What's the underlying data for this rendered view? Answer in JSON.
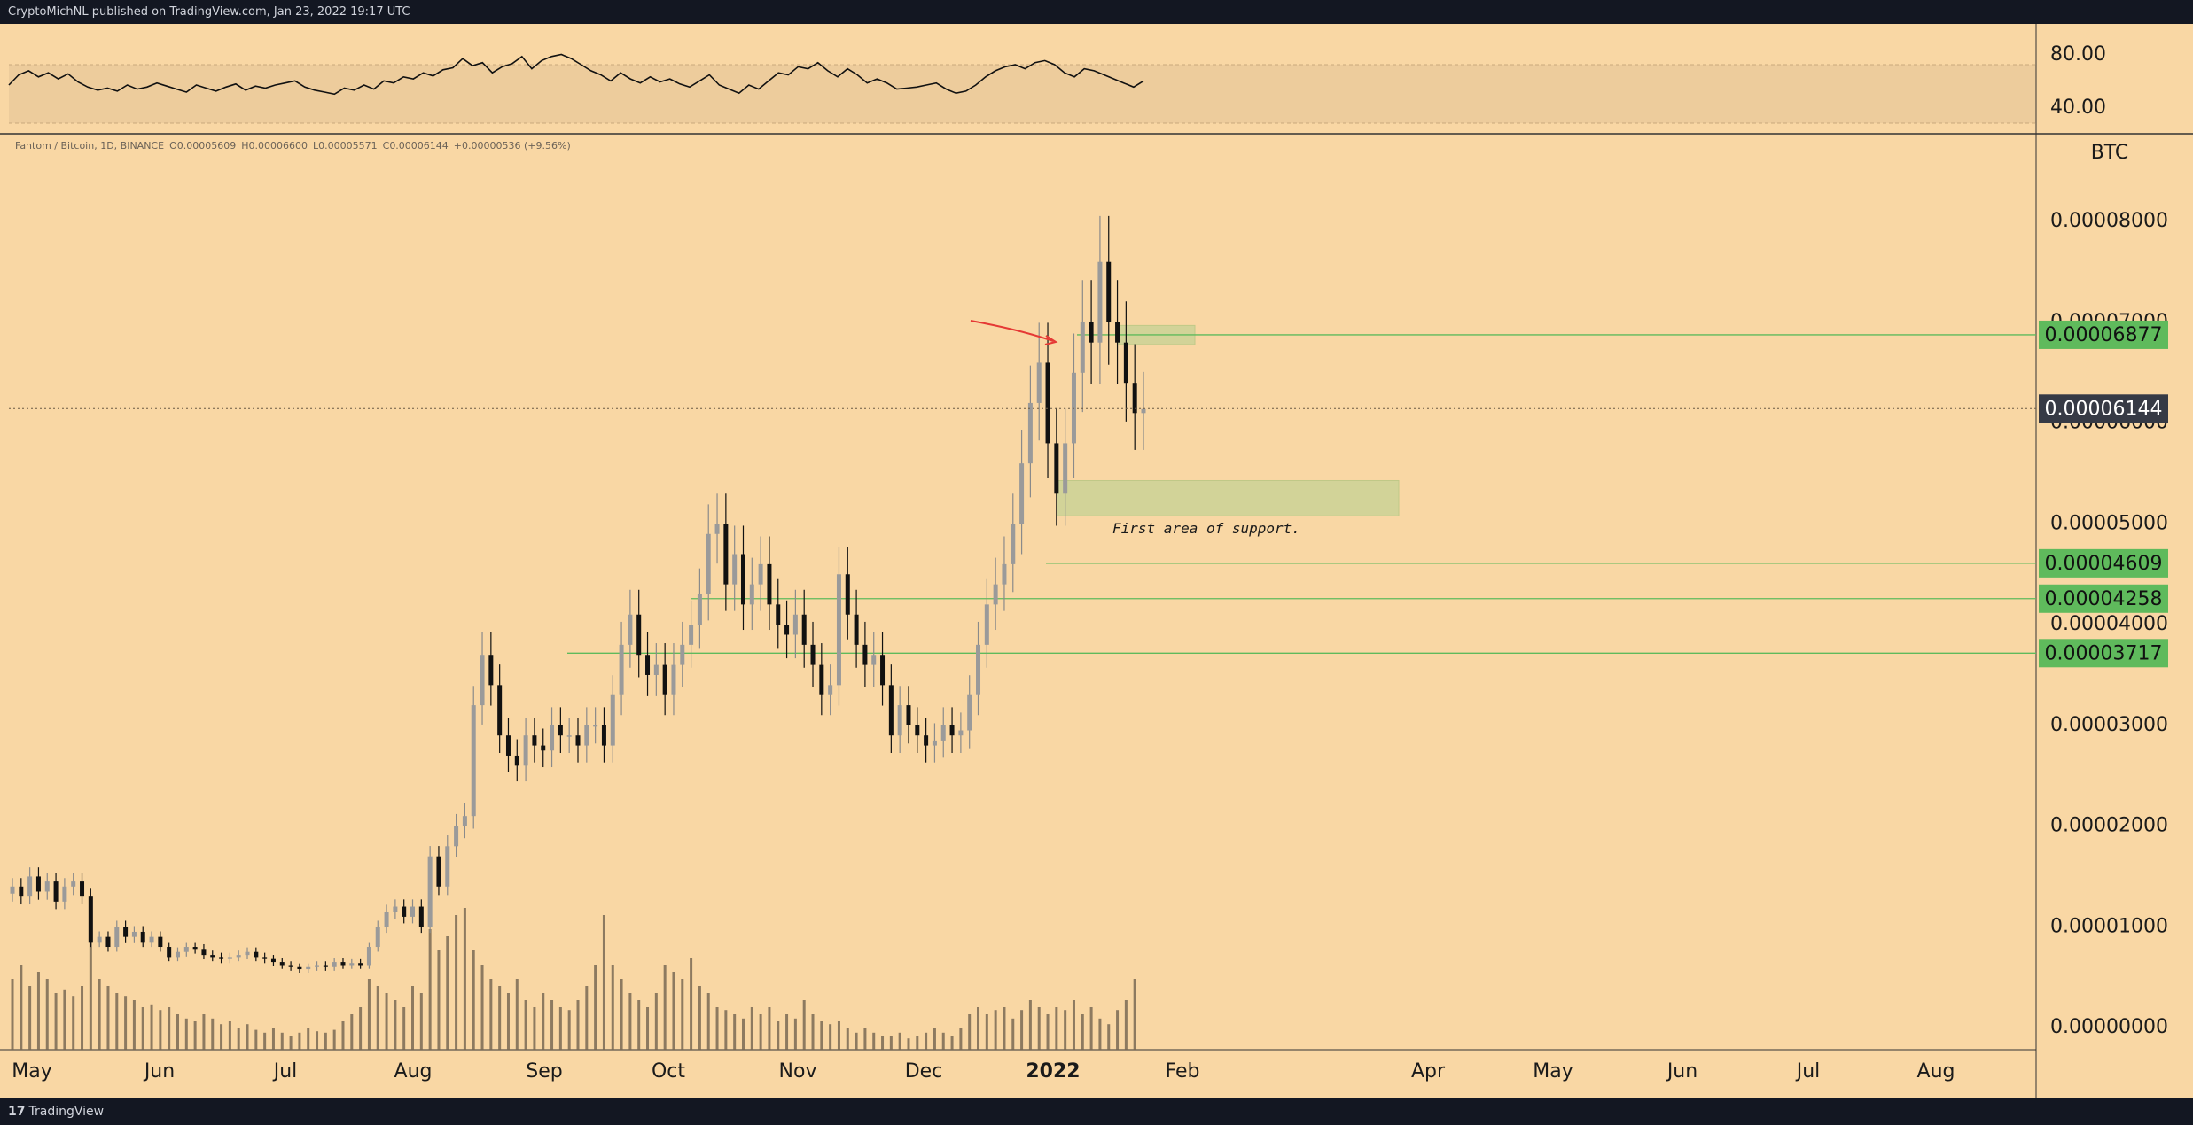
{
  "header": {
    "published_text": "CryptoMichNL published on TradingView.com, Jan 23, 2022 19:17 UTC"
  },
  "footer": {
    "logo_text": "17",
    "brand_text": "TradingView"
  },
  "colors": {
    "background": "#f9d7a4",
    "frame": "#131722",
    "candle": "#000000",
    "volume": "#7a6a55",
    "level_green": "#5fba5c",
    "price_box": "#363a45",
    "arrow_red": "#e53935"
  },
  "chart_data": [
    {
      "type": "line",
      "panel": "oscillator",
      "y_ticks": [
        "80.00",
        "40.00"
      ],
      "band_lines": [
        "upper",
        "lower"
      ],
      "y": [
        60,
        70,
        74,
        68,
        72,
        66,
        71,
        63,
        58,
        55,
        57,
        54,
        60,
        56,
        58,
        62,
        59,
        56,
        53,
        60,
        57,
        54,
        58,
        61,
        55,
        59,
        57,
        60,
        62,
        64,
        58,
        55,
        53,
        51,
        57,
        55,
        60,
        56,
        64,
        62,
        68,
        66,
        72,
        69,
        75,
        77,
        86,
        79,
        82,
        72,
        78,
        81,
        88,
        76,
        84,
        88,
        90,
        86,
        80,
        74,
        70,
        64,
        72,
        66,
        62,
        68,
        63,
        66,
        61,
        58,
        64,
        70,
        60,
        56,
        52,
        60,
        56,
        64,
        72,
        70,
        78,
        76,
        82,
        74,
        68,
        76,
        70,
        62,
        66,
        62,
        56,
        57,
        58,
        60,
        62,
        56,
        52,
        54,
        60,
        68,
        74,
        78,
        80,
        76,
        82,
        84,
        80,
        72,
        68,
        76,
        74,
        70,
        66,
        62,
        58,
        64
      ]
    },
    {
      "type": "candlestick",
      "panel": "price",
      "legend": "Fantom / Bitcoin, 1D, BINANCE",
      "ohlc_readout": {
        "o_label": "O",
        "open": "0.00005609",
        "h_label": "H",
        "high": "0.00006600",
        "l_label": "L",
        "low": "0.00005571",
        "c_label": "C",
        "close": "0.00006144",
        "change": "+0.00000536 (+9.56%)"
      },
      "currency": "BTC",
      "x_labels": [
        "May",
        "Jun",
        "Jul",
        "Aug",
        "Sep",
        "Oct",
        "Nov",
        "Dec",
        "2022",
        "Feb",
        "Apr",
        "May",
        "Jun",
        "Jul",
        "Aug"
      ],
      "y_ticks": [
        "0.00000000",
        "0.00001000",
        "0.00002000",
        "0.00003000",
        "0.00004000",
        "0.00005000",
        "0.00006000",
        "0.00007000",
        "0.00008000"
      ],
      "ylim": [
        0,
        8.6e-05
      ],
      "current_price": "0.00006144",
      "levels": [
        {
          "value": 6.877e-05,
          "label": "0.00006877"
        },
        {
          "value": 4.609e-05,
          "label": "0.00004609"
        },
        {
          "value": 4.258e-05,
          "label": "0.00004258"
        },
        {
          "value": 3.717e-05,
          "label": "0.00003717"
        }
      ],
      "annotation": "First area of support.",
      "support_zone": [
        5.08e-05,
        5.43e-05
      ],
      "resistance_zone": [
        6.78e-05,
        6.97e-05
      ],
      "close_series": [
        1.4e-05,
        1.3e-05,
        1.5e-05,
        1.35e-05,
        1.45e-05,
        1.25e-05,
        1.4e-05,
        1.45e-05,
        1.3e-05,
        8.5e-06,
        9e-06,
        8e-06,
        1e-05,
        9e-06,
        9.5e-06,
        8.5e-06,
        9e-06,
        8e-06,
        7e-06,
        7.5e-06,
        8e-06,
        7.8e-06,
        7.2e-06,
        7e-06,
        6.8e-06,
        7e-06,
        7.2e-06,
        7.5e-06,
        7e-06,
        6.8e-06,
        6.5e-06,
        6.2e-06,
        6e-06,
        5.8e-06,
        6e-06,
        6.2e-06,
        6e-06,
        6.5e-06,
        6.2e-06,
        6.4e-06,
        6.2e-06,
        8e-06,
        1e-05,
        1.15e-05,
        1.2e-05,
        1.1e-05,
        1.2e-05,
        1e-05,
        1.7e-05,
        1.4e-05,
        1.8e-05,
        2e-05,
        2.1e-05,
        3.2e-05,
        3.7e-05,
        3.4e-05,
        2.9e-05,
        2.7e-05,
        2.6e-05,
        2.9e-05,
        2.8e-05,
        2.75e-05,
        3e-05,
        2.9e-05,
        2.9e-05,
        2.8e-05,
        3e-05,
        3e-05,
        2.8e-05,
        3.3e-05,
        3.8e-05,
        4.1e-05,
        3.7e-05,
        3.5e-05,
        3.6e-05,
        3.3e-05,
        3.6e-05,
        3.8e-05,
        4e-05,
        4.3e-05,
        4.9e-05,
        5e-05,
        4.4e-05,
        4.7e-05,
        4.2e-05,
        4.4e-05,
        4.6e-05,
        4.2e-05,
        4e-05,
        3.9e-05,
        4.1e-05,
        3.8e-05,
        3.6e-05,
        3.3e-05,
        3.4e-05,
        4.5e-05,
        4.1e-05,
        3.8e-05,
        3.6e-05,
        3.7e-05,
        3.4e-05,
        2.9e-05,
        3.2e-05,
        3e-05,
        2.9e-05,
        2.8e-05,
        2.85e-05,
        3e-05,
        2.9e-05,
        2.95e-05,
        3.3e-05,
        3.8e-05,
        4.2e-05,
        4.4e-05,
        4.6e-05,
        5e-05,
        5.6e-05,
        6.2e-05,
        6.6e-05,
        5.8e-05,
        5.3e-05,
        5.8e-05,
        6.5e-05,
        7e-05,
        6.8e-05,
        7.6e-05,
        7e-05,
        6.8e-05,
        6.4e-05,
        6.1e-05,
        6.14e-05
      ],
      "volume_ratio": [
        0.5,
        0.6,
        0.45,
        0.55,
        0.5,
        0.4,
        0.42,
        0.38,
        0.45,
        0.9,
        0.5,
        0.45,
        0.4,
        0.38,
        0.35,
        0.3,
        0.32,
        0.28,
        0.3,
        0.25,
        0.22,
        0.2,
        0.25,
        0.22,
        0.18,
        0.2,
        0.15,
        0.18,
        0.14,
        0.12,
        0.15,
        0.12,
        0.1,
        0.12,
        0.15,
        0.13,
        0.12,
        0.14,
        0.2,
        0.25,
        0.3,
        0.5,
        0.45,
        0.4,
        0.35,
        0.3,
        0.45,
        0.4,
        0.85,
        0.7,
        0.8,
        0.95,
        1.0,
        0.7,
        0.6,
        0.5,
        0.45,
        0.4,
        0.5,
        0.35,
        0.3,
        0.4,
        0.35,
        0.3,
        0.28,
        0.35,
        0.45,
        0.6,
        0.95,
        0.6,
        0.5,
        0.4,
        0.35,
        0.3,
        0.4,
        0.6,
        0.55,
        0.5,
        0.65,
        0.45,
        0.4,
        0.3,
        0.28,
        0.25,
        0.22,
        0.3,
        0.25,
        0.3,
        0.2,
        0.25,
        0.22,
        0.35,
        0.25,
        0.2,
        0.18,
        0.2,
        0.15,
        0.12,
        0.15,
        0.12,
        0.1,
        0.1,
        0.12,
        0.08,
        0.1,
        0.12,
        0.15,
        0.12,
        0.1,
        0.15,
        0.25,
        0.3,
        0.25,
        0.28,
        0.3,
        0.22,
        0.28,
        0.35,
        0.3,
        0.25,
        0.3,
        0.28,
        0.35,
        0.25,
        0.3,
        0.22,
        0.18,
        0.28,
        0.35,
        0.5
      ]
    }
  ]
}
